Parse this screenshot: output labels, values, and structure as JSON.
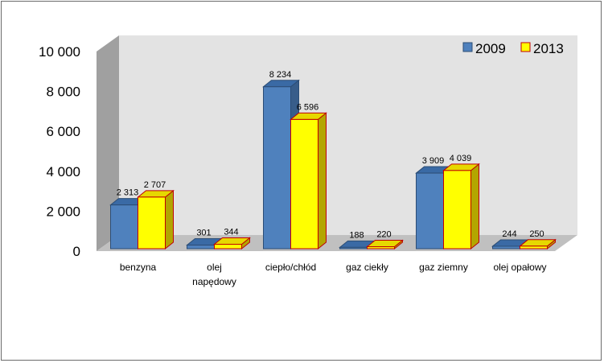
{
  "chart_data": {
    "type": "bar",
    "categories": [
      [
        "benzyna"
      ],
      [
        "olej",
        "napędowy"
      ],
      [
        "ciepło/chłód"
      ],
      [
        "gaz ciekły"
      ],
      [
        "gaz ziemny"
      ],
      [
        "olej opałowy"
      ]
    ],
    "series": [
      {
        "name": "2009",
        "color": "#4f81bd",
        "side_color": "#385d8a",
        "top_color": "#3a6aa5",
        "values": [
          2313,
          301,
          8234,
          188,
          3909,
          244
        ],
        "labels": [
          "2 313",
          "301",
          "8 234",
          "188",
          "3 909",
          "244"
        ]
      },
      {
        "name": "2013",
        "color": "#ffff00",
        "side_color": "#b3a600",
        "top_color": "#e6d800",
        "values": [
          2707,
          344,
          6596,
          220,
          4039,
          250
        ],
        "labels": [
          "2 707",
          "344",
          "6 596",
          "220",
          "4 039",
          "250"
        ]
      }
    ],
    "y_ticks": [
      "0",
      "2 000",
      "4 000",
      "6 000",
      "8 000",
      "10 000"
    ],
    "ylim": [
      0,
      10000
    ],
    "grid": false,
    "legend_position": "top-right",
    "three_d": true,
    "wall_color": "#e3e3e3",
    "left_wall_color": "#a0a0a0",
    "floor_color": "#c0c0c0"
  }
}
